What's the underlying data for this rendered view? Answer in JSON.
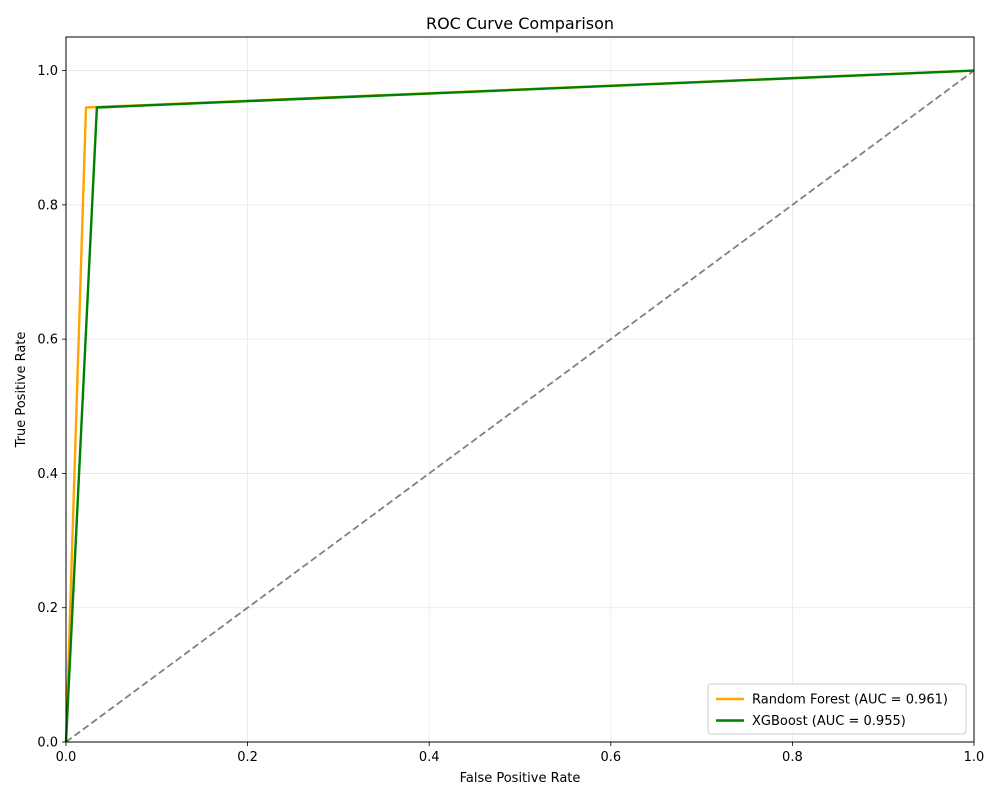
{
  "chart_data": {
    "type": "line",
    "title": "ROC Curve Comparison",
    "xlabel": "False Positive Rate",
    "ylabel": "True Positive Rate",
    "xlim": [
      0.0,
      1.0
    ],
    "ylim": [
      0.0,
      1.05
    ],
    "xticks": [
      "0.0",
      "0.2",
      "0.4",
      "0.6",
      "0.8",
      "1.0"
    ],
    "yticks": [
      "0.0",
      "0.2",
      "0.4",
      "0.6",
      "0.8",
      "1.0"
    ],
    "grid": true,
    "legend_position": "lower-right",
    "series": [
      {
        "name": "Random Forest (AUC = 0.961)",
        "color": "#ffa500",
        "style": "solid",
        "x": [
          0.0,
          0.022,
          1.0
        ],
        "y": [
          0.0,
          0.945,
          1.0
        ]
      },
      {
        "name": "XGBoost (AUC = 0.955)",
        "color": "#008000",
        "style": "solid",
        "x": [
          0.0,
          0.034,
          1.0
        ],
        "y": [
          0.0,
          0.945,
          1.0
        ]
      }
    ],
    "reference_line": {
      "color": "#808080",
      "style": "dashed",
      "x": [
        0.0,
        1.0
      ],
      "y": [
        0.0,
        1.0
      ]
    }
  }
}
